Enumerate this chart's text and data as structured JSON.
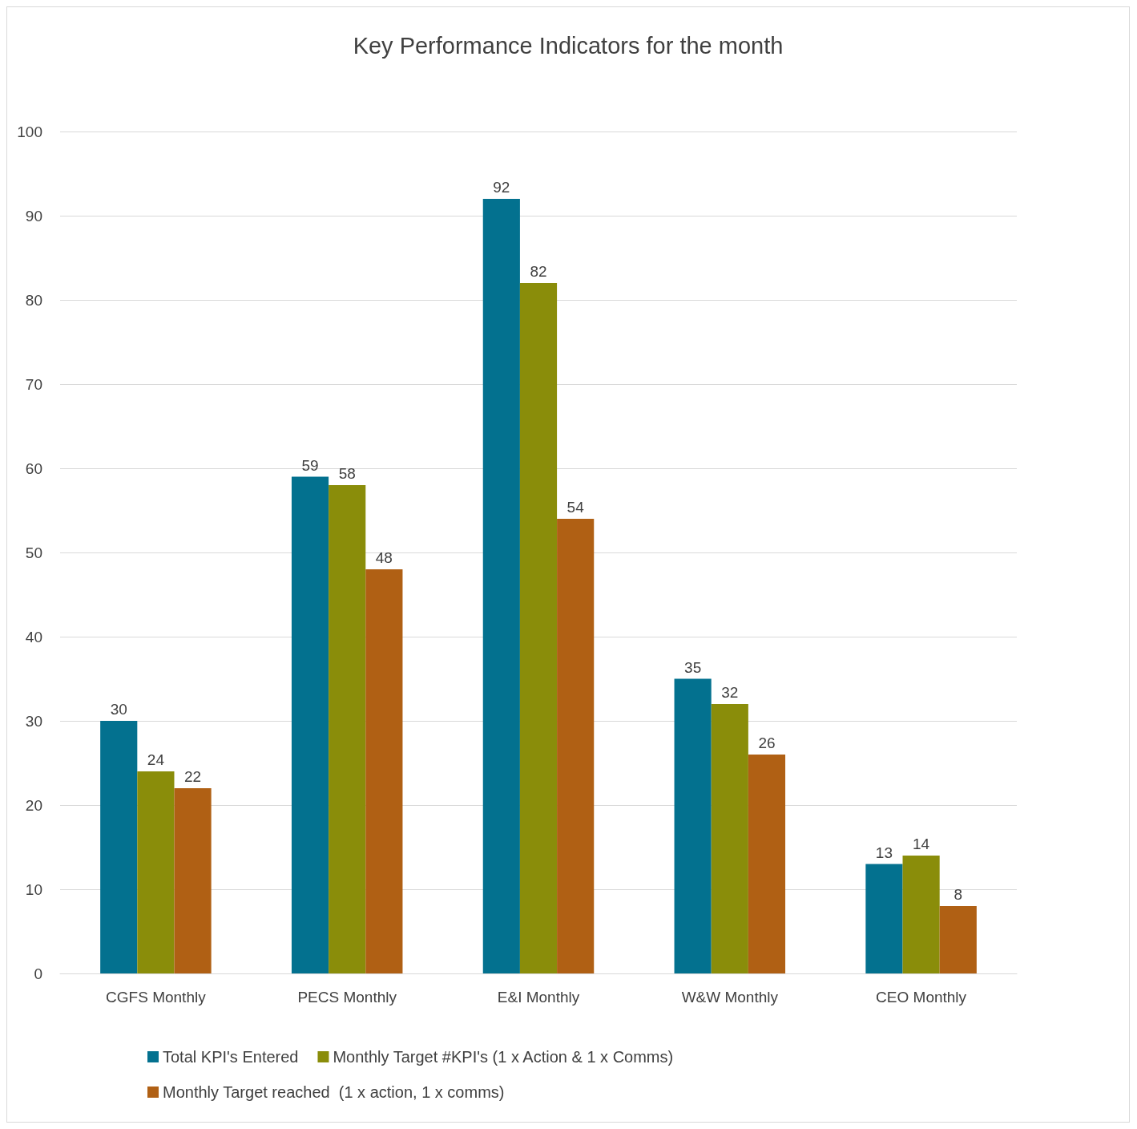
{
  "chart_data": {
    "type": "bar",
    "title": "Key Performance Indicators for the month",
    "categories": [
      "CGFS Monthly",
      "PECS Monthly",
      "E&I Monthly",
      "W&W Monthly",
      "CEO Monthly"
    ],
    "series": [
      {
        "name": "Total KPI's Entered",
        "color": "#03718f",
        "values": [
          30,
          59,
          92,
          35,
          13
        ]
      },
      {
        "name": "Monthly Target #KPI's (1 x Action & 1 x Comms)",
        "color": "#8a8d0a",
        "values": [
          24,
          58,
          82,
          32,
          14
        ]
      },
      {
        "name": "Monthly Target reached  (1 x action, 1 x comms)",
        "color": "#b06014",
        "values": [
          22,
          48,
          54,
          26,
          8
        ]
      }
    ],
    "ylim": [
      0,
      100
    ],
    "yticks": [
      0,
      10,
      20,
      30,
      40,
      50,
      60,
      70,
      80,
      90,
      100
    ],
    "grid": "y",
    "legend": "bottom",
    "data_labels": true
  }
}
